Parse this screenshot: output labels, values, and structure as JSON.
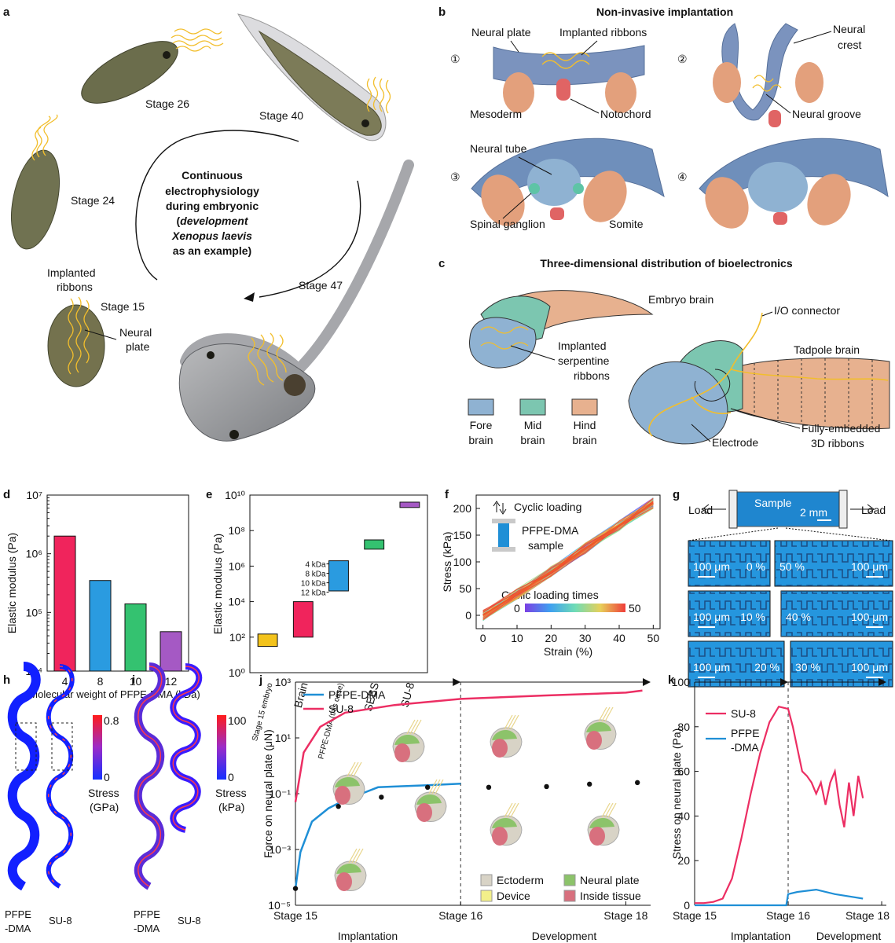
{
  "panels": {
    "a": {
      "letter": "a",
      "stages": [
        "Stage 26",
        "Stage 40",
        "Stage 24",
        "Stage 15",
        "Stage 47"
      ],
      "implanted": [
        "Implanted",
        "ribbons"
      ],
      "neural_plate": [
        "Neural",
        "plate"
      ],
      "center": [
        "Continuous",
        "electrophysiology",
        "during embryonic",
        "development",
        "Xenopus laevis",
        "as an example)"
      ],
      "center_paren": "("
    },
    "b": {
      "letter": "b",
      "title": "Non-invasive implantation",
      "steps": [
        "①",
        "②",
        "③",
        "④"
      ],
      "labels": [
        "Neural plate",
        "Implanted ribbons",
        "Mesoderm",
        "Notochord",
        "Neural",
        "crest",
        "Neural groove",
        "Neural tube",
        "Spinal ganglion",
        "Somite"
      ]
    },
    "c": {
      "letter": "c",
      "title": "Three-dimensional distribution of bioelectronics",
      "labels": [
        "Embryo brain",
        "I/O connector",
        "Tadpole brain",
        "Implanted",
        "serpentine",
        "ribbons",
        "Electrode",
        "Fully-embedded",
        "3D ribbons"
      ],
      "legend": [
        {
          "l1": "Fore",
          "l2": "brain",
          "color": "#8fb2d2"
        },
        {
          "l1": "Mid",
          "l2": "brain",
          "color": "#7cc6b0"
        },
        {
          "l1": "Hind",
          "l2": "brain",
          "color": "#e7b18f"
        }
      ]
    },
    "d": {
      "letter": "d"
    },
    "e": {
      "letter": "e"
    },
    "f": {
      "letter": "f",
      "loading": "Cyclic loading",
      "sample": [
        "PFPE-DMA",
        "sample"
      ],
      "cbar_title": "Cyclic loading times",
      "cbar_min": "0",
      "cbar_max": "50"
    },
    "g": {
      "letter": "g",
      "load": "Load",
      "sample": "Sample",
      "scale": "2 mm",
      "micro": [
        {
          "left": "100 μm",
          "right": "0 %"
        },
        {
          "left": "50 %",
          "right": "100 μm"
        },
        {
          "left": "100 μm",
          "right": "10 %"
        },
        {
          "left": "40 %",
          "right": "100 μm"
        },
        {
          "left": "100 μm",
          "right": "20 %"
        },
        {
          "left": "30 %",
          "right": "100 μm"
        }
      ]
    },
    "h": {
      "letter": "h",
      "labels": [
        "PFPE",
        "-DMA",
        "SU-8"
      ],
      "cbar_max": "0.8",
      "cbar_min": "0",
      "unit": [
        "Stress",
        "(GPa)"
      ]
    },
    "i": {
      "letter": "i",
      "labels": [
        "PFPE",
        "-DMA",
        "SU-8"
      ],
      "cbar_max": "100",
      "cbar_min": "0",
      "unit": [
        "Stress",
        "(kPa)"
      ]
    },
    "j": {
      "letter": "j",
      "legend": [
        "Ectoderm",
        "Device",
        "Neural plate",
        "Inside tissue"
      ],
      "legend_colors": [
        "#d8d3c6",
        "#f3f08a",
        "#8cc36a",
        "#d8707e"
      ],
      "phases": [
        "Implantation",
        "Development"
      ]
    },
    "k": {
      "letter": "k",
      "phases": [
        "Implantation",
        "Development"
      ]
    }
  },
  "chart_data": [
    {
      "id": "d",
      "type": "bar",
      "categories": [
        "4",
        "8",
        "10",
        "12"
      ],
      "values": [
        2000000,
        350000,
        140000,
        47000
      ],
      "colors": [
        "#f0245c",
        "#2a9be0",
        "#34c270",
        "#a559c4"
      ],
      "xlabel": "Molecular weight of PFPE-DMA (kDa)",
      "ylabel": "Elastic modulus (Pa)",
      "yscale": "log",
      "ylim": [
        10000,
        10000000
      ],
      "yticks": [
        {
          "v": 10000,
          "l": "10⁴"
        },
        {
          "v": 100000,
          "l": "10⁵"
        },
        {
          "v": 1000000,
          "l": "10⁶"
        },
        {
          "v": 10000000,
          "l": "10⁷"
        }
      ]
    },
    {
      "id": "e",
      "type": "bar",
      "categories": [
        "Stage 15 embryo",
        "Brain",
        "PFPE-DMA (this case)",
        "SEBS",
        "SU-8"
      ],
      "ranges": [
        [
          30,
          150
        ],
        [
          100,
          10000
        ],
        [
          40000,
          2000000
        ],
        [
          9000000,
          30000000
        ],
        [
          2000000000,
          4000000000
        ]
      ],
      "colors": [
        "#f3c31c",
        "#f0245c",
        "#2a9be0",
        "#34c270",
        "#a559c4"
      ],
      "range_labels": [
        "4 kDa",
        "8 kDa",
        "10 kDa",
        "12 kDa"
      ],
      "ylabel": "Elastic modulus (Pa)",
      "yscale": "log",
      "ylim": [
        1,
        10000000000
      ],
      "yticks": [
        {
          "v": 1,
          "l": "10⁰"
        },
        {
          "v": 100,
          "l": "10²"
        },
        {
          "v": 10000,
          "l": "10⁴"
        },
        {
          "v": 1000000,
          "l": "10⁶"
        },
        {
          "v": 100000000,
          "l": "10⁸"
        },
        {
          "v": 10000000000,
          "l": "10¹⁰"
        }
      ]
    },
    {
      "id": "f",
      "type": "line",
      "xlabel": "Strain (%)",
      "ylabel": "Stress (kPa)",
      "xlim": [
        -2,
        52
      ],
      "ylim": [
        -25,
        225
      ],
      "xticks": [
        0,
        10,
        20,
        30,
        40,
        50
      ],
      "yticks": [
        0,
        50,
        100,
        150,
        200
      ],
      "series": [
        {
          "x": [
            0,
            10,
            20,
            30,
            40,
            50
          ],
          "y": [
            0,
            40,
            82,
            125,
            168,
            210
          ]
        }
      ],
      "cycles": 50
    },
    {
      "id": "j",
      "type": "line",
      "xlabel": "",
      "ylabel": "Force on neural plate (μN)",
      "yscale": "log",
      "ylim": [
        1e-05,
        1000
      ],
      "xticks": [
        "Stage 15",
        "Stage 16",
        "Stage 18"
      ],
      "yticks": [
        {
          "v": 1e-05,
          "l": "10⁻⁵"
        },
        {
          "v": 0.001,
          "l": "10⁻³"
        },
        {
          "v": 0.1,
          "l": "10⁻¹"
        },
        {
          "v": 10,
          "l": "10¹"
        },
        {
          "v": 1000,
          "l": "10³"
        }
      ],
      "series": [
        {
          "name": "PFPE-DMA",
          "color": "#1f8fd6",
          "x": [
            0.0,
            0.03,
            0.1,
            0.2,
            0.3,
            0.4,
            0.5,
            0.6,
            0.8,
            1.0
          ],
          "y": [
            4e-05,
            0.0008,
            0.01,
            0.03,
            0.06,
            0.1,
            0.17,
            0.18,
            0.2,
            0.23
          ],
          "points": [
            [
              0.0,
              4e-05
            ],
            [
              0.26,
              0.035
            ],
            [
              0.52,
              0.075
            ],
            [
              0.8,
              0.17
            ],
            [
              1.17,
              0.17
            ],
            [
              1.52,
              0.18
            ],
            [
              1.78,
              0.22
            ],
            [
              2.07,
              0.25
            ]
          ]
        },
        {
          "name": "SU-8",
          "color": "#ec2e63",
          "x": [
            0.0,
            0.05,
            0.15,
            0.3,
            0.6,
            1.0,
            1.5,
            2.0,
            2.1
          ],
          "y": [
            0.05,
            3,
            25,
            80,
            150,
            250,
            330,
            420,
            500
          ]
        }
      ]
    },
    {
      "id": "k",
      "type": "line",
      "ylabel": "Stress on neural plate (Pa)",
      "ylim": [
        0,
        100
      ],
      "yticks": [
        0,
        20,
        40,
        60,
        80,
        100
      ],
      "xticks": [
        "Stage 15",
        "Stage 16",
        "Stage 18"
      ],
      "series": [
        {
          "name": "SU-8",
          "color": "#ec2e63",
          "x": [
            0.0,
            0.1,
            0.2,
            0.3,
            0.4,
            0.5,
            0.6,
            0.7,
            0.8,
            0.9,
            1.0,
            1.05,
            1.1,
            1.15,
            1.2,
            1.25,
            1.3,
            1.35,
            1.4,
            1.45,
            1.5,
            1.55,
            1.6,
            1.65,
            1.7,
            1.75,
            1.8
          ],
          "y": [
            1,
            1,
            1.5,
            3,
            12,
            30,
            50,
            68,
            82,
            89,
            88,
            80,
            70,
            60,
            58,
            55,
            50,
            55,
            45,
            55,
            60,
            45,
            35,
            55,
            40,
            58,
            48
          ]
        },
        {
          "name": "PFPE\n-DMA",
          "color": "#1f8fd6",
          "x": [
            0.0,
            0.5,
            0.98,
            1.0,
            1.1,
            1.3,
            1.5,
            1.8
          ],
          "y": [
            0,
            0,
            0,
            5,
            6,
            7,
            5,
            3
          ]
        }
      ]
    }
  ]
}
